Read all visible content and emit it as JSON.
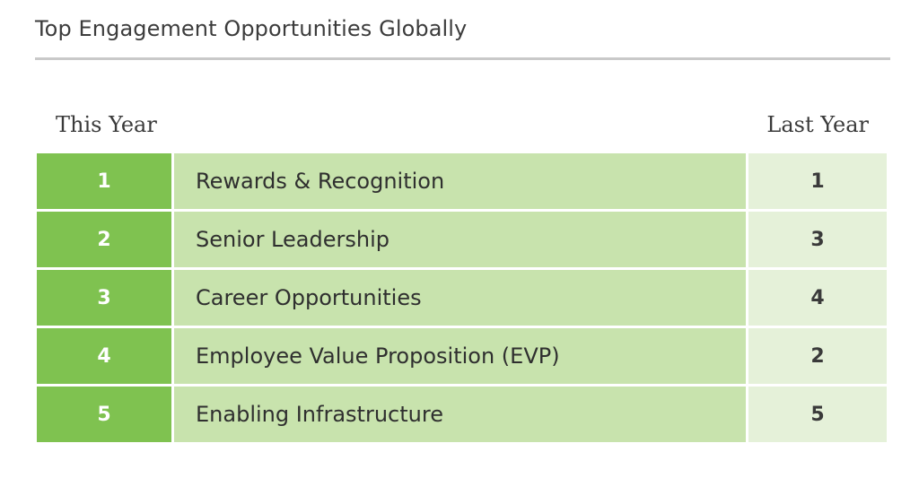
{
  "chart_data": {
    "type": "table",
    "title": "Top Engagement Opportunities Globally",
    "columns": [
      "This Year",
      "",
      "Last Year"
    ],
    "rows": [
      {
        "this_year": "1",
        "opportunity": "Rewards & Recognition",
        "last_year": "1"
      },
      {
        "this_year": "2",
        "opportunity": "Senior Leadership",
        "last_year": "3"
      },
      {
        "this_year": "3",
        "opportunity": "Career Opportunities",
        "last_year": "4"
      },
      {
        "this_year": "4",
        "opportunity": "Employee Value Proposition (EVP)",
        "last_year": "2"
      },
      {
        "this_year": "5",
        "opportunity": "Enabling Infrastructure",
        "last_year": "5"
      }
    ]
  },
  "colors": {
    "rank_bg": "#7fc250",
    "label_bg": "#c8e3ad",
    "last_bg": "#e5f1d9",
    "rule": "#c9c9c9"
  }
}
